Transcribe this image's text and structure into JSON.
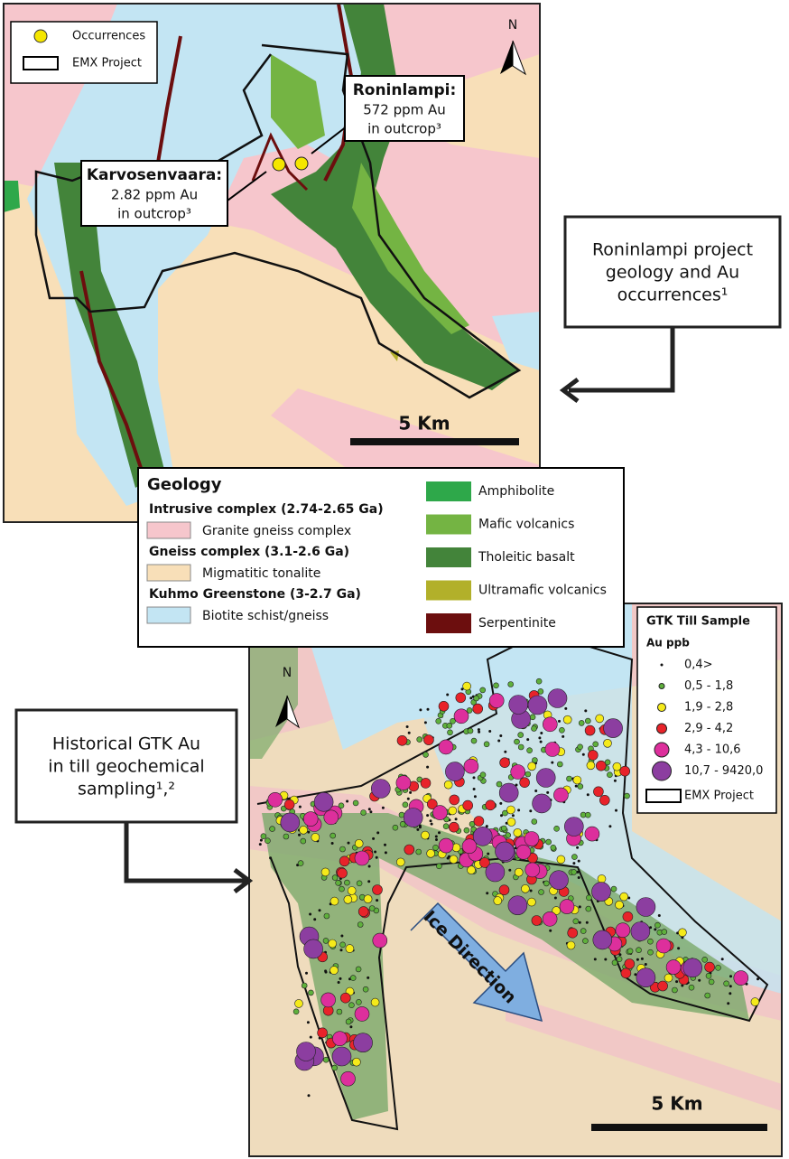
{
  "top_map": {
    "legend": [
      {
        "label": "Occurrences",
        "color": "#f5e600"
      },
      {
        "label": "EMX Project"
      }
    ],
    "north": "N",
    "labels": [
      {
        "title": "Roninlampi:",
        "lines": [
          "572 ppm Au",
          "in outcrop³"
        ]
      },
      {
        "title": "Karvosenvaara:",
        "lines": [
          "2.82 ppm Au",
          "in outcrop³"
        ]
      }
    ],
    "scale": "5 Km"
  },
  "callout_top": {
    "lines": [
      "Roninlampi project",
      "geology and Au",
      "occurrences¹"
    ]
  },
  "geology_legend": {
    "title": "Geology",
    "groups": [
      {
        "name": "Intrusive complex (2.74-2.65 Ga)",
        "item": "Granite gneiss complex",
        "color": "#f6c6cc"
      },
      {
        "name": "Gneiss complex (3.1-2.6 Ga)",
        "item": "Migmatitic tonalite",
        "color": "#f8dfb8"
      },
      {
        "name": "Kuhmo Greenstone (3-2.7 Ga)",
        "item": "Biotite schist/gneiss",
        "color": "#c3e5f3"
      }
    ],
    "items": [
      {
        "label": "Amphibolite",
        "color": "#2ea84a"
      },
      {
        "label": "Mafic volcanics",
        "color": "#74b443"
      },
      {
        "label": "Tholeitic basalt",
        "color": "#43843a"
      },
      {
        "label": "Ultramafic volcanics",
        "color": "#b2b02a"
      },
      {
        "label": "Serpentinite",
        "color": "#6c0e0e"
      }
    ]
  },
  "bottom_map": {
    "legend_title": "GTK Till Sample",
    "legend_subtitle": "Au ppb",
    "items": [
      {
        "label": "0,4>",
        "color": "#111111"
      },
      {
        "label": "0,5 - 1,8",
        "color": "#5fb03c"
      },
      {
        "label": "1,9 - 2,8",
        "color": "#f5ea1a"
      },
      {
        "label": "2,9 - 4,2",
        "color": "#e8232a"
      },
      {
        "label": "4,3 - 10,6",
        "color": "#dd2f9c"
      },
      {
        "label": "10,7 - 9420,0",
        "color": "#8c3ea0"
      }
    ],
    "project": "EMX Project",
    "north": "N",
    "ice": "Ice Direction",
    "scale": "5 Km"
  },
  "callout_bottom": {
    "lines": [
      "Historical GTK Au",
      "in till geochemical",
      "sampling¹,²"
    ]
  }
}
